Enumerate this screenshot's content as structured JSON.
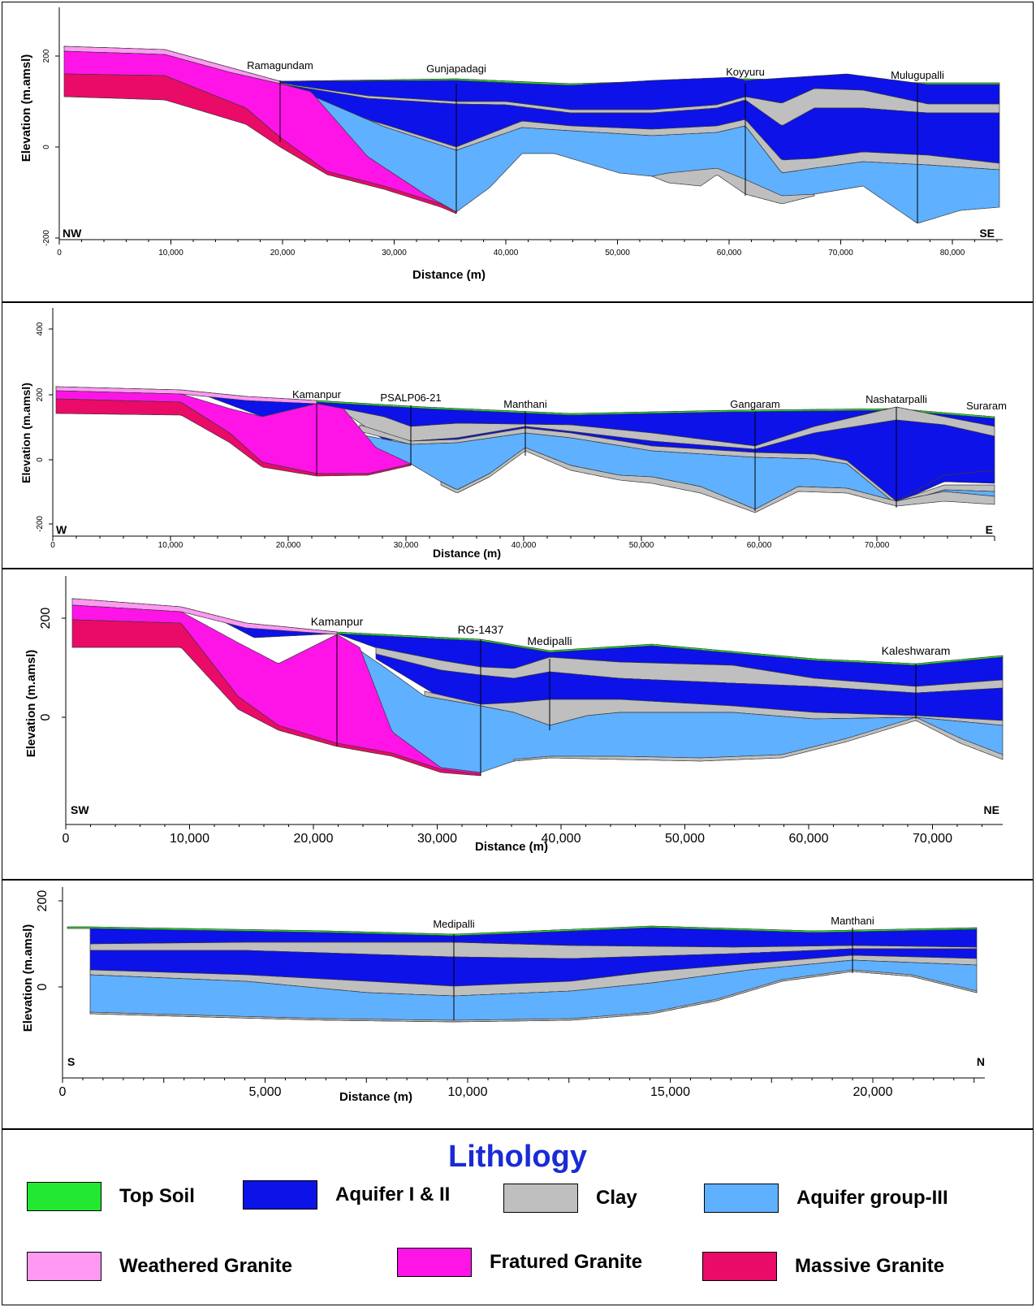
{
  "colors": {
    "top_soil": "#22e832",
    "aquifer_1_2": "#0d12e8",
    "clay": "#bfbfbf",
    "aquifer_3": "#5fb0ff",
    "weathered_granite": "#ff99f2",
    "fractured_granite": "#ff14e8",
    "massive_granite": "#ea0a68"
  },
  "chart_data": [
    {
      "type": "cross-section",
      "xlabel": "Distance (m)",
      "ylabel": "Elevation (m.amsl)",
      "xlim": [
        0,
        85000
      ],
      "ylim": [
        -200,
        250
      ],
      "xticks": [
        "0",
        "10,000",
        "20,000",
        "30,000",
        "40,000",
        "50,000",
        "60,000",
        "70,000",
        "80,000"
      ],
      "yticks": [
        "200",
        "0",
        "-200"
      ],
      "dir_left": "NW",
      "dir_right": "SE",
      "wells": [
        {
          "name": "Ramagundam",
          "x": 20000
        },
        {
          "name": "Gunjapadagi",
          "x": 36000
        },
        {
          "name": "Koyyuru",
          "x": 62000
        },
        {
          "name": "Mulugupalli",
          "x": 77500
        }
      ]
    },
    {
      "type": "cross-section",
      "xlabel": "Distance (m)",
      "ylabel": "Elevation (m.amsl)",
      "xlim": [
        0,
        80000
      ],
      "ylim": [
        -200,
        450
      ],
      "xticks": [
        "0",
        "10,000",
        "20,000",
        "30,000",
        "40,000",
        "50,000",
        "60,000",
        "70,000"
      ],
      "yticks": [
        "400",
        "200",
        "0",
        "-200"
      ],
      "dir_left": "W",
      "dir_right": "E",
      "wells": [
        {
          "name": "Kamanpur",
          "x": 22000
        },
        {
          "name": "PSALP06-21",
          "x": 30000
        },
        {
          "name": "Manthani",
          "x": 40000
        },
        {
          "name": "Gangaram",
          "x": 59000
        },
        {
          "name": "Nashatarpalli",
          "x": 71000
        },
        {
          "name": "Suraram",
          "x": 79000
        }
      ]
    },
    {
      "type": "cross-section",
      "xlabel": "Distance (m)",
      "ylabel": "Elevation (m.amsl)",
      "xlim": [
        0,
        75000
      ],
      "ylim": [
        -200,
        300
      ],
      "xticks": [
        "0",
        "10,000",
        "20,000",
        "30,000",
        "40,000",
        "50,000",
        "60,000",
        "70,000"
      ],
      "yticks": [
        "200",
        "0"
      ],
      "dir_left": "SW",
      "dir_right": "NE",
      "wells": [
        {
          "name": "Kamanpur",
          "x": 21500
        },
        {
          "name": "RG-1437",
          "x": 33000
        },
        {
          "name": "Medipalli",
          "x": 39000
        },
        {
          "name": "Kaleshwaram",
          "x": 68000
        }
      ]
    },
    {
      "type": "cross-section",
      "xlabel": "Distance (m)",
      "ylabel": "Elevation (m.amsl)",
      "xlim": [
        0,
        22500
      ],
      "ylim": [
        -140,
        250
      ],
      "xticks": [
        "0",
        "5,000",
        "10,000",
        "15,000",
        "20,000"
      ],
      "yticks": [
        "200",
        "0"
      ],
      "dir_left": "S",
      "dir_right": "N",
      "wells": [
        {
          "name": "Medipalli",
          "x": 9500
        },
        {
          "name": "Manthani",
          "x": 19300
        }
      ]
    }
  ],
  "legend": {
    "title": "Lithology",
    "items": [
      {
        "key": "top_soil",
        "label": "Top Soil"
      },
      {
        "key": "aquifer_1_2",
        "label": "Aquifer I & II"
      },
      {
        "key": "clay",
        "label": "Clay"
      },
      {
        "key": "aquifer_3",
        "label": "Aquifer group-III"
      },
      {
        "key": "weathered_granite",
        "label": "Weathered Granite"
      },
      {
        "key": "fractured_granite",
        "label": "Fratured Granite"
      },
      {
        "key": "massive_granite",
        "label": "Massive Granite"
      }
    ]
  }
}
